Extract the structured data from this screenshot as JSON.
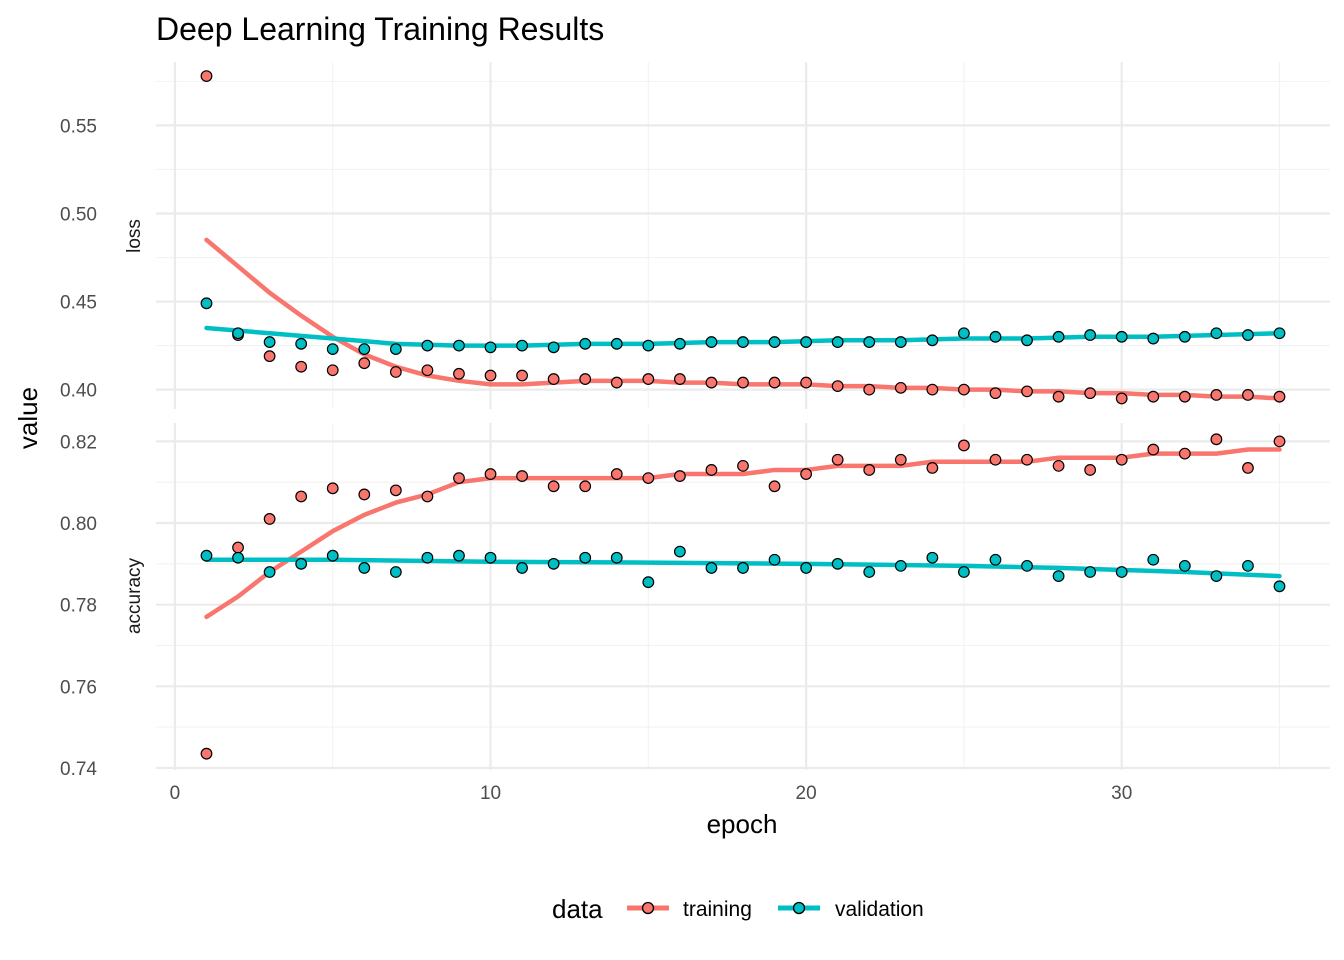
{
  "chart_data": {
    "type": "scatter",
    "title": "Deep Learning Training Results",
    "xlabel": "epoch",
    "ylabel": "value",
    "xlim": [
      -0.6,
      36.6
    ],
    "x_ticks": [
      0,
      10,
      20,
      30
    ],
    "x_tick_labels": [
      "0",
      "10",
      "20",
      "30"
    ],
    "grid": true,
    "legend": {
      "title": "data",
      "position": "bottom",
      "entries": [
        "training",
        "validation"
      ]
    },
    "series_colors": {
      "training": "#F8766D",
      "validation": "#00BFC4"
    },
    "panels": [
      {
        "name": "loss",
        "ylim": [
          0.389,
          0.586
        ],
        "y_ticks": [
          0.4,
          0.45,
          0.5,
          0.55
        ],
        "y_tick_labels": [
          "0.40",
          "0.45",
          "0.50",
          "0.55"
        ],
        "series": [
          {
            "name": "training",
            "x": [
              1,
              2,
              3,
              4,
              5,
              6,
              7,
              8,
              9,
              10,
              11,
              12,
              13,
              14,
              15,
              16,
              17,
              18,
              19,
              20,
              21,
              22,
              23,
              24,
              25,
              26,
              27,
              28,
              29,
              30,
              31,
              32,
              33,
              34,
              35
            ],
            "values": [
              0.578,
              0.431,
              0.419,
              0.413,
              0.411,
              0.415,
              0.41,
              0.411,
              0.409,
              0.408,
              0.408,
              0.406,
              0.406,
              0.404,
              0.406,
              0.406,
              0.404,
              0.404,
              0.404,
              0.404,
              0.402,
              0.4,
              0.401,
              0.4,
              0.4,
              0.398,
              0.399,
              0.396,
              0.398,
              0.395,
              0.396,
              0.396,
              0.397,
              0.397,
              0.396
            ],
            "smooth": [
              [
                1,
                0.485
              ],
              [
                2,
                0.47
              ],
              [
                3,
                0.455
              ],
              [
                4,
                0.442
              ],
              [
                5,
                0.43
              ],
              [
                6,
                0.42
              ],
              [
                7,
                0.413
              ],
              [
                8,
                0.408
              ],
              [
                9,
                0.405
              ],
              [
                10,
                0.403
              ],
              [
                11,
                0.403
              ],
              [
                12,
                0.404
              ],
              [
                13,
                0.405
              ],
              [
                14,
                0.405
              ],
              [
                15,
                0.405
              ],
              [
                16,
                0.404
              ],
              [
                17,
                0.404
              ],
              [
                18,
                0.403
              ],
              [
                19,
                0.403
              ],
              [
                20,
                0.403
              ],
              [
                21,
                0.402
              ],
              [
                22,
                0.402
              ],
              [
                23,
                0.401
              ],
              [
                24,
                0.401
              ],
              [
                25,
                0.4
              ],
              [
                26,
                0.4
              ],
              [
                27,
                0.399
              ],
              [
                28,
                0.399
              ],
              [
                29,
                0.398
              ],
              [
                30,
                0.398
              ],
              [
                31,
                0.397
              ],
              [
                32,
                0.397
              ],
              [
                33,
                0.396
              ],
              [
                34,
                0.396
              ],
              [
                35,
                0.395
              ]
            ]
          },
          {
            "name": "validation",
            "x": [
              1,
              2,
              3,
              4,
              5,
              6,
              7,
              8,
              9,
              10,
              11,
              12,
              13,
              14,
              15,
              16,
              17,
              18,
              19,
              20,
              21,
              22,
              23,
              24,
              25,
              26,
              27,
              28,
              29,
              30,
              31,
              32,
              33,
              34,
              35
            ],
            "values": [
              0.449,
              0.432,
              0.427,
              0.426,
              0.423,
              0.423,
              0.423,
              0.425,
              0.425,
              0.424,
              0.425,
              0.424,
              0.426,
              0.426,
              0.425,
              0.426,
              0.427,
              0.427,
              0.427,
              0.427,
              0.427,
              0.427,
              0.427,
              0.428,
              0.432,
              0.43,
              0.428,
              0.43,
              0.431,
              0.43,
              0.429,
              0.43,
              0.432,
              0.431,
              0.432
            ],
            "smooth": [
              [
                1,
                0.435
              ],
              [
                3,
                0.432
              ],
              [
                5,
                0.429
              ],
              [
                7,
                0.426
              ],
              [
                9,
                0.425
              ],
              [
                11,
                0.425
              ],
              [
                13,
                0.426
              ],
              [
                15,
                0.426
              ],
              [
                17,
                0.427
              ],
              [
                19,
                0.427
              ],
              [
                21,
                0.428
              ],
              [
                23,
                0.428
              ],
              [
                25,
                0.429
              ],
              [
                27,
                0.429
              ],
              [
                29,
                0.43
              ],
              [
                31,
                0.43
              ],
              [
                33,
                0.431
              ],
              [
                35,
                0.432
              ]
            ]
          }
        ]
      },
      {
        "name": "accuracy",
        "ylim": [
          0.7395,
          0.8245
        ],
        "y_ticks": [
          0.74,
          0.76,
          0.78,
          0.8,
          0.82
        ],
        "y_tick_labels": [
          "0.74",
          "0.76",
          "0.78",
          "0.80",
          "0.82"
        ],
        "series": [
          {
            "name": "training",
            "x": [
              1,
              2,
              3,
              4,
              5,
              6,
              7,
              8,
              9,
              10,
              11,
              12,
              13,
              14,
              15,
              16,
              17,
              18,
              19,
              20,
              21,
              22,
              23,
              24,
              25,
              26,
              27,
              28,
              29,
              30,
              31,
              32,
              33,
              34,
              35
            ],
            "values": [
              0.7435,
              0.794,
              0.801,
              0.8065,
              0.8085,
              0.807,
              0.808,
              0.8065,
              0.811,
              0.812,
              0.8115,
              0.809,
              0.809,
              0.812,
              0.811,
              0.8115,
              0.813,
              0.814,
              0.809,
              0.812,
              0.8155,
              0.813,
              0.8155,
              0.8135,
              0.819,
              0.8155,
              0.8155,
              0.814,
              0.813,
              0.8155,
              0.818,
              0.817,
              0.8205,
              0.8135,
              0.82
            ],
            "smooth": [
              [
                1,
                0.777
              ],
              [
                2,
                0.782
              ],
              [
                3,
                0.788
              ],
              [
                4,
                0.793
              ],
              [
                5,
                0.798
              ],
              [
                6,
                0.802
              ],
              [
                7,
                0.805
              ],
              [
                8,
                0.807
              ],
              [
                9,
                0.81
              ],
              [
                10,
                0.811
              ],
              [
                11,
                0.811
              ],
              [
                12,
                0.811
              ],
              [
                13,
                0.811
              ],
              [
                14,
                0.811
              ],
              [
                15,
                0.811
              ],
              [
                16,
                0.812
              ],
              [
                17,
                0.812
              ],
              [
                18,
                0.812
              ],
              [
                19,
                0.813
              ],
              [
                20,
                0.813
              ],
              [
                21,
                0.814
              ],
              [
                22,
                0.814
              ],
              [
                23,
                0.814
              ],
              [
                24,
                0.815
              ],
              [
                25,
                0.815
              ],
              [
                26,
                0.815
              ],
              [
                27,
                0.815
              ],
              [
                28,
                0.816
              ],
              [
                29,
                0.816
              ],
              [
                30,
                0.816
              ],
              [
                31,
                0.817
              ],
              [
                32,
                0.817
              ],
              [
                33,
                0.817
              ],
              [
                34,
                0.818
              ],
              [
                35,
                0.818
              ]
            ]
          },
          {
            "name": "validation",
            "x": [
              1,
              2,
              3,
              4,
              5,
              6,
              7,
              8,
              9,
              10,
              11,
              12,
              13,
              14,
              15,
              16,
              17,
              18,
              19,
              20,
              21,
              22,
              23,
              24,
              25,
              26,
              27,
              28,
              29,
              30,
              31,
              32,
              33,
              34,
              35
            ],
            "values": [
              0.792,
              0.7915,
              0.788,
              0.79,
              0.792,
              0.789,
              0.788,
              0.7915,
              0.792,
              0.7915,
              0.789,
              0.79,
              0.7915,
              0.7915,
              0.7855,
              0.793,
              0.789,
              0.789,
              0.791,
              0.789,
              0.79,
              0.788,
              0.7895,
              0.7915,
              0.788,
              0.791,
              0.7895,
              0.787,
              0.788,
              0.788,
              0.791,
              0.7895,
              0.787,
              0.7895,
              0.7845
            ],
            "smooth": [
              [
                1,
                0.791
              ],
              [
                5,
                0.791
              ],
              [
                10,
                0.7905
              ],
              [
                15,
                0.7903
              ],
              [
                20,
                0.79
              ],
              [
                25,
                0.7895
              ],
              [
                28,
                0.789
              ],
              [
                30,
                0.7885
              ],
              [
                32,
                0.788
              ],
              [
                35,
                0.787
              ]
            ]
          }
        ]
      }
    ]
  }
}
